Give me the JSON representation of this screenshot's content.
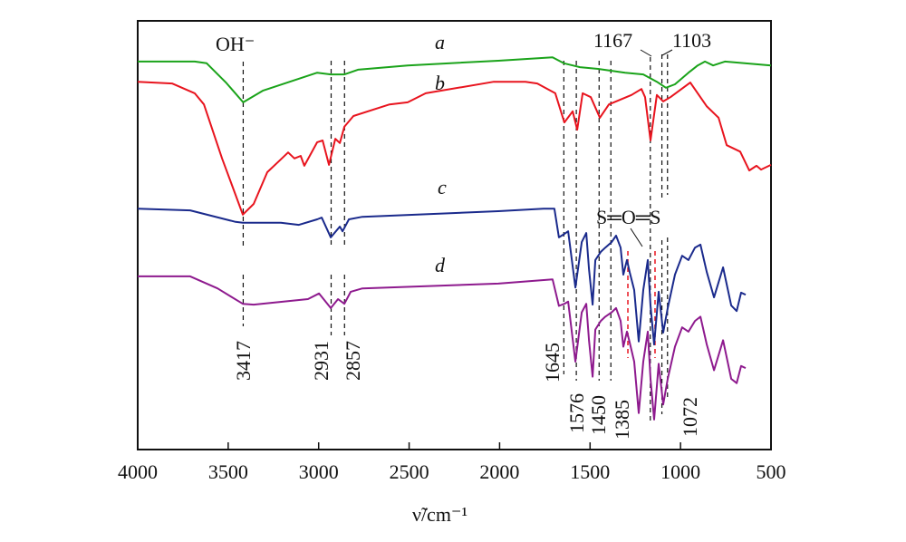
{
  "chart_data": {
    "type": "line",
    "xlabel": "ν̃/cm⁻¹",
    "xlim": [
      4000,
      500
    ],
    "x_reversed": true,
    "xticks": [
      4000,
      3500,
      3000,
      2500,
      2000,
      1500,
      1000,
      500
    ],
    "ylabel": "",
    "ylim": [
      0,
      100
    ],
    "y_tick_labels_shown": false,
    "grid": false,
    "series": [
      {
        "name": "a",
        "color": "#1aa31a",
        "points": [
          [
            4000,
            90.5
          ],
          [
            3685,
            90.5
          ],
          [
            3619,
            90.1
          ],
          [
            3510,
            85.5
          ],
          [
            3417,
            81.0
          ],
          [
            3309,
            83.7
          ],
          [
            3008,
            87.9
          ],
          [
            2933,
            87.5
          ],
          [
            2858,
            87.5
          ],
          [
            2783,
            88.6
          ],
          [
            2508,
            89.6
          ],
          [
            2007,
            90.7
          ],
          [
            1707,
            91.5
          ],
          [
            1645,
            90.1
          ],
          [
            1556,
            89.2
          ],
          [
            1456,
            88.8
          ],
          [
            1306,
            87.9
          ],
          [
            1206,
            87.5
          ],
          [
            1131,
            85.8
          ],
          [
            1081,
            84.4
          ],
          [
            1031,
            85.2
          ],
          [
            956,
            87.9
          ],
          [
            905,
            89.6
          ],
          [
            865,
            90.5
          ],
          [
            820,
            89.6
          ],
          [
            755,
            90.5
          ],
          [
            500,
            89.6
          ]
        ]
      },
      {
        "name": "b",
        "color": "#e8141e",
        "points": [
          [
            4000,
            85.8
          ],
          [
            3810,
            85.4
          ],
          [
            3685,
            83.1
          ],
          [
            3634,
            80.5
          ],
          [
            3534,
            67.9
          ],
          [
            3459,
            59.4
          ],
          [
            3419,
            54.8
          ],
          [
            3359,
            57.3
          ],
          [
            3284,
            64.7
          ],
          [
            3209,
            67.7
          ],
          [
            3169,
            69.3
          ],
          [
            3134,
            67.9
          ],
          [
            3099,
            68.5
          ],
          [
            3079,
            66.2
          ],
          [
            3008,
            71.7
          ],
          [
            2978,
            72.1
          ],
          [
            2943,
            66.4
          ],
          [
            2908,
            72.5
          ],
          [
            2883,
            71.5
          ],
          [
            2858,
            75.3
          ],
          [
            2808,
            77.8
          ],
          [
            2608,
            80.5
          ],
          [
            2508,
            81.0
          ],
          [
            2408,
            83.1
          ],
          [
            2032,
            85.8
          ],
          [
            1932,
            85.8
          ],
          [
            1857,
            85.8
          ],
          [
            1792,
            85.4
          ],
          [
            1692,
            83.1
          ],
          [
            1642,
            76.3
          ],
          [
            1596,
            78.9
          ],
          [
            1571,
            74.6
          ],
          [
            1541,
            83.1
          ],
          [
            1496,
            82.2
          ],
          [
            1446,
            77.4
          ],
          [
            1396,
            80.5
          ],
          [
            1271,
            82.7
          ],
          [
            1216,
            84.1
          ],
          [
            1196,
            82.2
          ],
          [
            1166,
            72.1
          ],
          [
            1131,
            82.7
          ],
          [
            1096,
            81.2
          ],
          [
            1056,
            82.2
          ],
          [
            946,
            85.6
          ],
          [
            856,
            80.1
          ],
          [
            790,
            77.4
          ],
          [
            745,
            71.0
          ],
          [
            670,
            69.5
          ],
          [
            620,
            65.1
          ],
          [
            580,
            66.2
          ],
          [
            555,
            65.3
          ],
          [
            500,
            66.4
          ]
        ]
      },
      {
        "name": "c",
        "color": "#1a2a8c",
        "points": [
          [
            4000,
            56.2
          ],
          [
            3710,
            55.8
          ],
          [
            3459,
            53.1
          ],
          [
            3419,
            52.9
          ],
          [
            3209,
            52.9
          ],
          [
            3109,
            52.4
          ],
          [
            3008,
            53.7
          ],
          [
            2983,
            54.1
          ],
          [
            2933,
            49.5
          ],
          [
            2883,
            52.0
          ],
          [
            2868,
            50.9
          ],
          [
            2833,
            53.7
          ],
          [
            2758,
            54.3
          ],
          [
            2007,
            55.6
          ],
          [
            1757,
            56.2
          ],
          [
            1697,
            56.2
          ],
          [
            1672,
            49.5
          ],
          [
            1642,
            50.3
          ],
          [
            1621,
            50.9
          ],
          [
            1581,
            37.8
          ],
          [
            1546,
            48.4
          ],
          [
            1521,
            50.5
          ],
          [
            1506,
            42.1
          ],
          [
            1486,
            33.8
          ],
          [
            1471,
            44.2
          ],
          [
            1441,
            46.1
          ],
          [
            1416,
            47.1
          ],
          [
            1381,
            48.4
          ],
          [
            1356,
            49.9
          ],
          [
            1331,
            47.1
          ],
          [
            1316,
            40.8
          ],
          [
            1296,
            44.2
          ],
          [
            1281,
            41.4
          ],
          [
            1256,
            37.2
          ],
          [
            1231,
            25.2
          ],
          [
            1206,
            37.2
          ],
          [
            1181,
            44.2
          ],
          [
            1166,
            33.6
          ],
          [
            1146,
            24.5
          ],
          [
            1121,
            36.8
          ],
          [
            1096,
            27.3
          ],
          [
            1071,
            33.0
          ],
          [
            1031,
            40.8
          ],
          [
            991,
            45.2
          ],
          [
            956,
            44.2
          ],
          [
            920,
            47.1
          ],
          [
            890,
            47.8
          ],
          [
            855,
            41.4
          ],
          [
            815,
            35.5
          ],
          [
            765,
            42.5
          ],
          [
            720,
            33.6
          ],
          [
            690,
            32.3
          ],
          [
            665,
            36.6
          ],
          [
            640,
            36.1
          ]
        ]
      },
      {
        "name": "d",
        "color": "#8e1a8e",
        "points": [
          [
            4000,
            40.4
          ],
          [
            3710,
            40.4
          ],
          [
            3559,
            37.6
          ],
          [
            3419,
            34.0
          ],
          [
            3359,
            33.8
          ],
          [
            3059,
            35.1
          ],
          [
            2998,
            36.4
          ],
          [
            2933,
            33.0
          ],
          [
            2893,
            35.1
          ],
          [
            2858,
            34.0
          ],
          [
            2823,
            36.8
          ],
          [
            2758,
            37.6
          ],
          [
            2007,
            38.7
          ],
          [
            1707,
            39.7
          ],
          [
            1672,
            33.5
          ],
          [
            1642,
            34.0
          ],
          [
            1621,
            34.5
          ],
          [
            1581,
            20.5
          ],
          [
            1546,
            32.0
          ],
          [
            1521,
            34.0
          ],
          [
            1506,
            25.5
          ],
          [
            1486,
            17.0
          ],
          [
            1471,
            28.0
          ],
          [
            1441,
            30.0
          ],
          [
            1416,
            31.0
          ],
          [
            1381,
            32.0
          ],
          [
            1356,
            33.0
          ],
          [
            1331,
            30.0
          ],
          [
            1316,
            24.0
          ],
          [
            1296,
            27.5
          ],
          [
            1281,
            25.0
          ],
          [
            1256,
            20.5
          ],
          [
            1231,
            8.5
          ],
          [
            1206,
            20.5
          ],
          [
            1181,
            27.5
          ],
          [
            1166,
            16.5
          ],
          [
            1146,
            7.0
          ],
          [
            1121,
            20.0
          ],
          [
            1096,
            10.5
          ],
          [
            1071,
            16.5
          ],
          [
            1031,
            24.0
          ],
          [
            991,
            28.5
          ],
          [
            956,
            27.5
          ],
          [
            920,
            30.0
          ],
          [
            890,
            31.0
          ],
          [
            855,
            24.5
          ],
          [
            815,
            18.5
          ],
          [
            765,
            25.5
          ],
          [
            720,
            16.5
          ],
          [
            690,
            15.5
          ],
          [
            665,
            19.5
          ],
          [
            640,
            19.0
          ]
        ]
      }
    ],
    "curve_labels": [
      "a",
      "b",
      "c",
      "d"
    ],
    "annotations": {
      "oh_label": "OH⁻",
      "so_label": "S═O═S",
      "peaks": [
        {
          "label": "3417",
          "x": 3417
        },
        {
          "label": "2931",
          "x": 2931
        },
        {
          "label": "2857",
          "x": 2857
        },
        {
          "label": "1645",
          "x": 1645
        },
        {
          "label": "1576",
          "x": 1576
        },
        {
          "label": "1450",
          "x": 1450
        },
        {
          "label": "1385",
          "x": 1385
        },
        {
          "label": "1167",
          "x": 1167
        },
        {
          "label": "1103",
          "x": 1103
        },
        {
          "label": "1072",
          "x": 1072
        }
      ],
      "red_dashed_markers": [
        1291,
        1141
      ]
    }
  }
}
